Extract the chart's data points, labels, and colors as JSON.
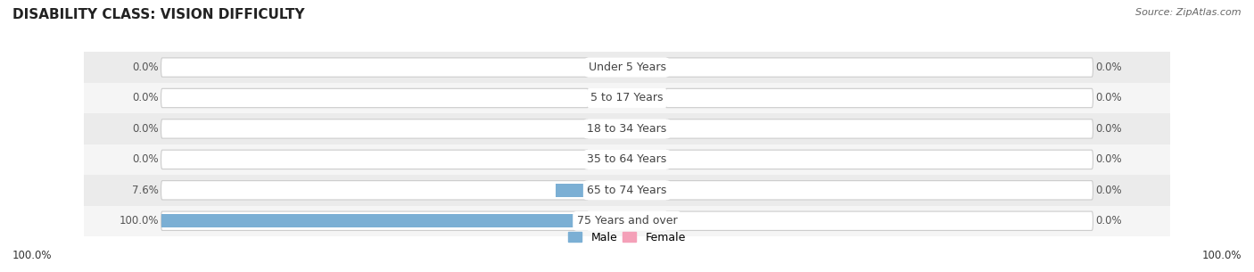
{
  "title": "DISABILITY CLASS: VISION DIFFICULTY",
  "source": "Source: ZipAtlas.com",
  "categories": [
    "Under 5 Years",
    "5 to 17 Years",
    "18 to 34 Years",
    "35 to 64 Years",
    "65 to 74 Years",
    "75 Years and over"
  ],
  "male_values": [
    0.0,
    0.0,
    0.0,
    0.0,
    7.6,
    100.0
  ],
  "female_values": [
    0.0,
    0.0,
    0.0,
    0.0,
    0.0,
    0.0
  ],
  "male_color": "#7bafd4",
  "female_color": "#f4a0b8",
  "row_bg_colors": [
    "#ebebeb",
    "#f5f5f5"
  ],
  "max_value": 100.0,
  "male_label": "Male",
  "female_label": "Female",
  "title_fontsize": 11,
  "label_fontsize": 9,
  "tick_fontsize": 8.5,
  "x_left_label": "100.0%",
  "x_right_label": "100.0%"
}
